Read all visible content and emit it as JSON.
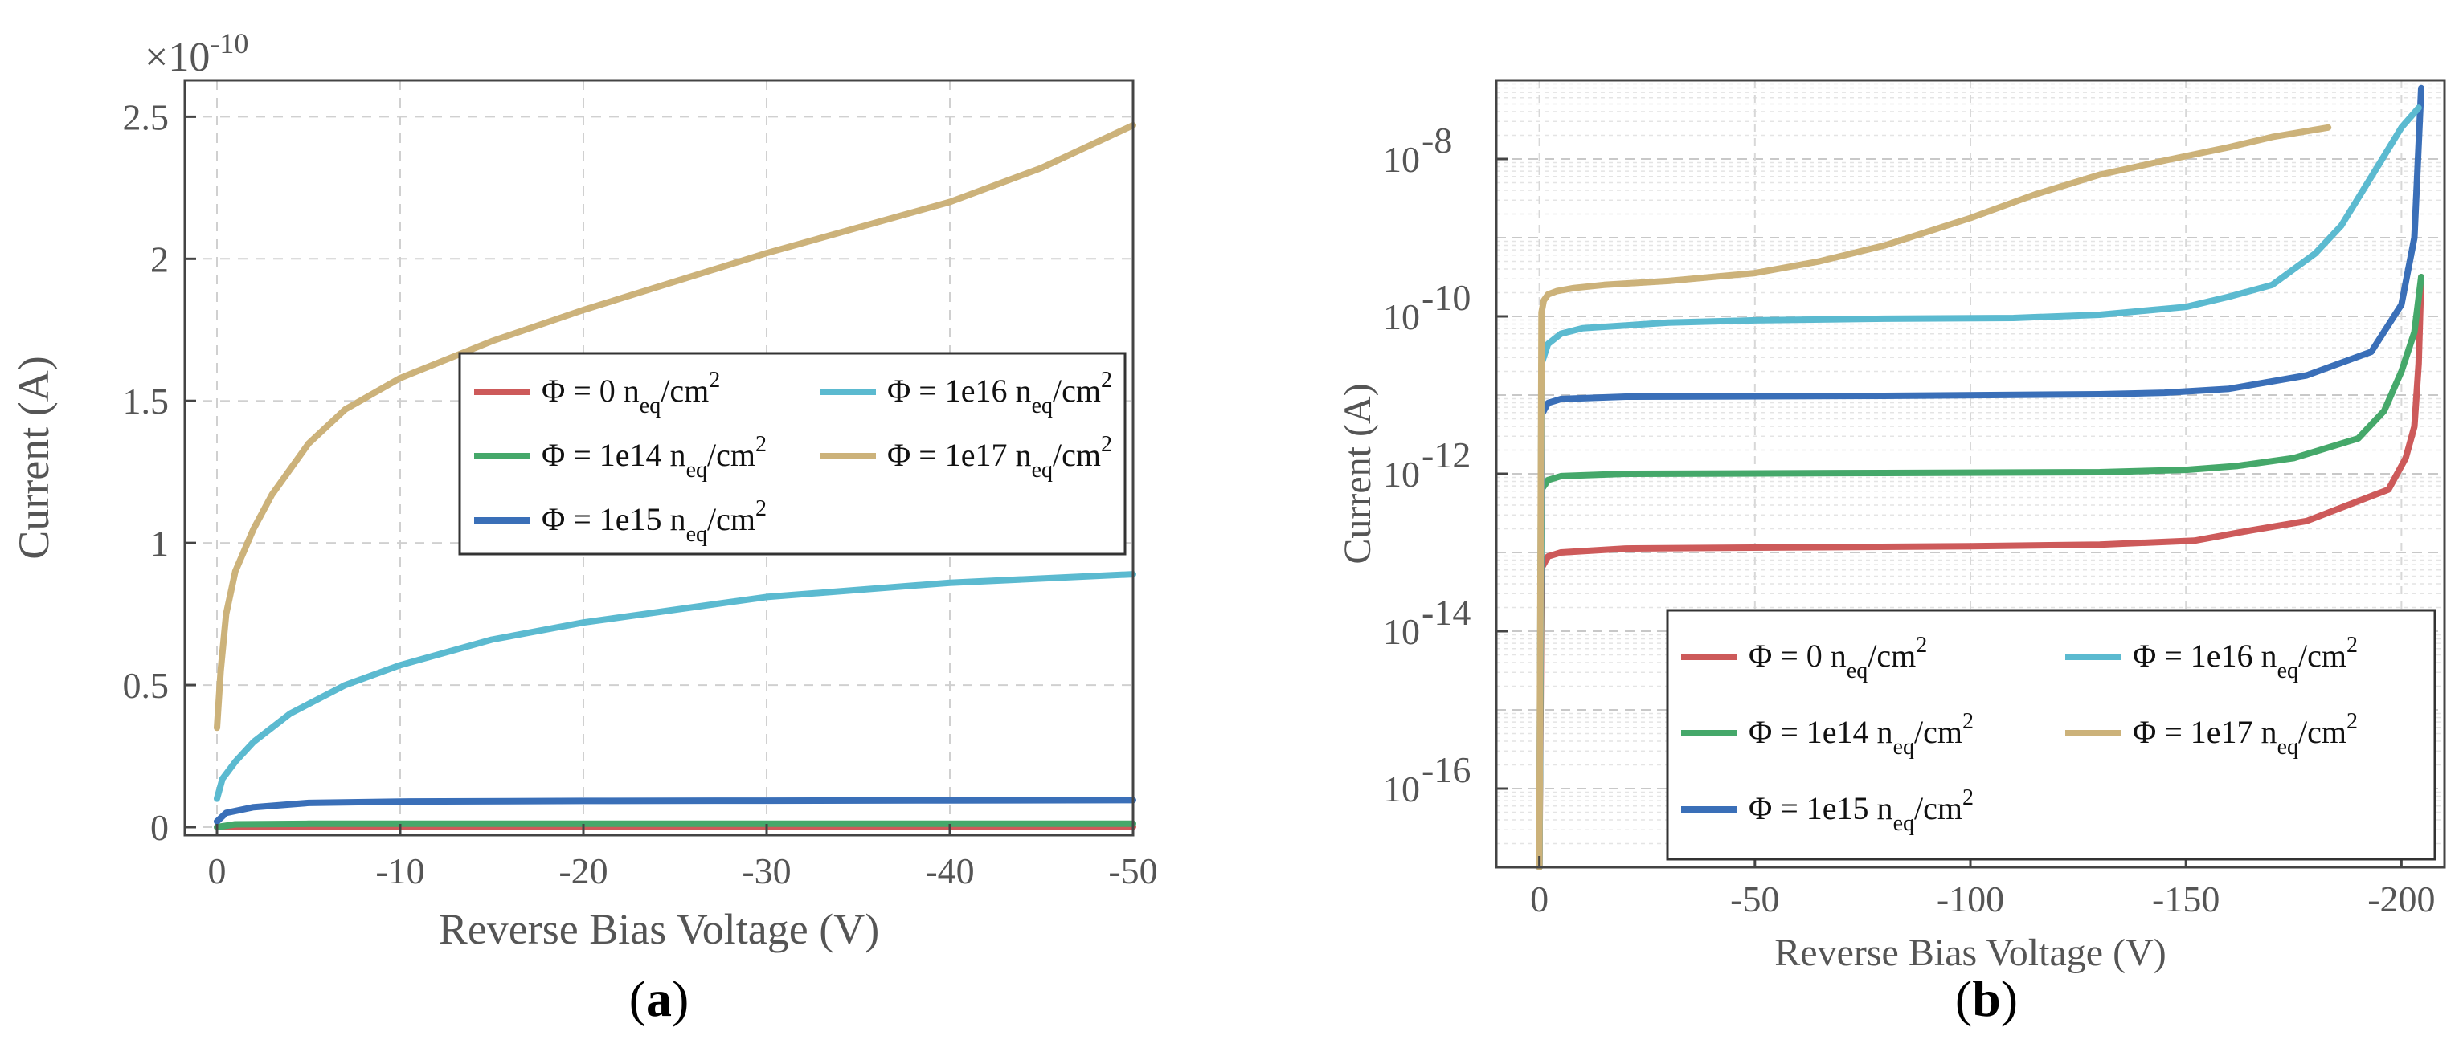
{
  "figure": {
    "colors": {
      "phi0": "#cd5a5a",
      "phi1e14": "#45a86a",
      "phi1e15": "#3a6fb8",
      "phi1e16": "#5bbad0",
      "phi1e17": "#ccb27a",
      "grid": "#d0d0d0",
      "axis": "#444444"
    }
  },
  "chart_data": [
    {
      "panel_label": "(a)",
      "panel_letter": "a",
      "type": "line",
      "xlabel": "Reverse Bias Voltage (V)",
      "ylabel": "Current (A)",
      "exponent_label": "×10",
      "exponent_power": "-10",
      "xlim": [
        0,
        -50
      ],
      "ylim": [
        0,
        2.6
      ],
      "y_scale_factor": 1e-10,
      "xticks": [
        0,
        -10,
        -20,
        -30,
        -40,
        -50
      ],
      "xtick_labels": [
        "0",
        "-10",
        "-20",
        "-30",
        "-40",
        "-50"
      ],
      "yticks": [
        0,
        0.5,
        1,
        1.5,
        2,
        2.5
      ],
      "ytick_labels": [
        "0",
        "0.5",
        "1",
        "1.5",
        "2",
        "2.5"
      ],
      "grid": true,
      "legend_position": "center-right",
      "series": [
        {
          "key": "phi0",
          "label_pre": "Φ = 0 n",
          "label_sub": "eq",
          "label_post": "/cm",
          "label_sup": "2",
          "x": [
            0,
            -1,
            -5,
            -10,
            -20,
            -30,
            -40,
            -50
          ],
          "y": [
            0,
            0.001,
            0.001,
            0.001,
            0.001,
            0.001,
            0.001,
            0.001
          ]
        },
        {
          "key": "phi1e14",
          "label_pre": "Φ = 1e14 n",
          "label_sub": "eq",
          "label_post": "/cm",
          "label_sup": "2",
          "x": [
            0,
            -1,
            -5,
            -10,
            -20,
            -30,
            -40,
            -50
          ],
          "y": [
            0,
            0.01,
            0.012,
            0.012,
            0.012,
            0.012,
            0.012,
            0.012
          ]
        },
        {
          "key": "phi1e15",
          "label_pre": "Φ = 1e15 n",
          "label_sub": "eq",
          "label_post": "/cm",
          "label_sup": "2",
          "x": [
            0,
            -0.5,
            -2,
            -5,
            -10,
            -20,
            -30,
            -40,
            -50
          ],
          "y": [
            0.02,
            0.05,
            0.07,
            0.085,
            0.09,
            0.092,
            0.093,
            0.094,
            0.095
          ]
        },
        {
          "key": "phi1e16",
          "label_pre": "Φ = 1e16 n",
          "label_sub": "eq",
          "label_post": "/cm",
          "label_sup": "2",
          "x": [
            0,
            -0.3,
            -1,
            -2,
            -4,
            -7,
            -10,
            -15,
            -20,
            -30,
            -40,
            -50
          ],
          "y": [
            0.1,
            0.17,
            0.23,
            0.3,
            0.4,
            0.5,
            0.57,
            0.66,
            0.72,
            0.81,
            0.86,
            0.89
          ]
        },
        {
          "key": "phi1e17",
          "label_pre": "Φ = 1e17 n",
          "label_sub": "eq",
          "label_post": "/cm",
          "label_sup": "2",
          "x": [
            0,
            -0.2,
            -0.5,
            -1,
            -2,
            -3,
            -5,
            -7,
            -10,
            -15,
            -20,
            -30,
            -40,
            -45,
            -50
          ],
          "y": [
            0.35,
            0.55,
            0.75,
            0.9,
            1.05,
            1.17,
            1.35,
            1.47,
            1.58,
            1.71,
            1.82,
            2.02,
            2.2,
            2.32,
            2.47
          ]
        }
      ]
    },
    {
      "panel_label": "(b)",
      "panel_letter": "b",
      "type": "line",
      "yscale": "log",
      "xlabel": "Reverse Bias Voltage (V)",
      "ylabel": "Current (A)",
      "xlim": [
        10,
        -210
      ],
      "ylim_exp": [
        -17,
        -7
      ],
      "xticks": [
        0,
        -50,
        -100,
        -150,
        -200
      ],
      "xtick_labels": [
        "0",
        "-50",
        "-100",
        "-150",
        "-200"
      ],
      "yticks_exp": [
        -8,
        -10,
        -12,
        -14,
        -16
      ],
      "ytick_base": "10",
      "ytick_powers": [
        "-8",
        "-10",
        "-12",
        "-14",
        "-16"
      ],
      "grid": true,
      "legend_position": "bottom-right",
      "series": [
        {
          "key": "phi0",
          "label_pre": "Φ = 0 n",
          "label_sub": "eq",
          "label_post": "/cm",
          "label_sup": "2",
          "x": [
            0,
            -0.5,
            -2,
            -5,
            -20,
            -100,
            -130,
            -152,
            -165,
            -178,
            -197,
            -201,
            -203,
            -204,
            -204.6
          ],
          "y_exp": [
            -17,
            -13.2,
            -13.05,
            -13.0,
            -12.95,
            -12.92,
            -12.9,
            -12.85,
            -12.72,
            -12.6,
            -12.2,
            -11.8,
            -11.4,
            -10.6,
            -9.5
          ]
        },
        {
          "key": "phi1e14",
          "label_pre": "Φ = 1e14 n",
          "label_sub": "eq",
          "label_post": "/cm",
          "label_sup": "2",
          "x": [
            0,
            -0.5,
            -2,
            -5,
            -20,
            -80,
            -130,
            -150,
            -162,
            -175,
            -190,
            -196,
            -200,
            -203,
            -204.6
          ],
          "y_exp": [
            -17,
            -12.2,
            -12.08,
            -12.03,
            -12.0,
            -11.99,
            -11.98,
            -11.95,
            -11.9,
            -11.8,
            -11.55,
            -11.2,
            -10.7,
            -10.2,
            -9.5
          ]
        },
        {
          "key": "phi1e15",
          "label_pre": "Φ = 1e15 n",
          "label_sub": "eq",
          "label_post": "/cm",
          "label_sup": "2",
          "x": [
            0,
            -0.5,
            -2,
            -5,
            -20,
            -80,
            -130,
            -145,
            -160,
            -178,
            -193,
            -200,
            -203,
            -204.6
          ],
          "y_exp": [
            -17,
            -11.25,
            -11.1,
            -11.05,
            -11.02,
            -11.01,
            -10.99,
            -10.97,
            -10.92,
            -10.75,
            -10.45,
            -9.85,
            -9.0,
            -7.1
          ]
        },
        {
          "key": "phi1e16",
          "label_pre": "Φ = 1e16 n",
          "label_sub": "eq",
          "label_post": "/cm",
          "label_sup": "2",
          "x": [
            0,
            -0.5,
            -2,
            -5,
            -10,
            -30,
            -50,
            -80,
            -110,
            -130,
            -150,
            -160,
            -170,
            -180,
            -186,
            -195,
            -200,
            -204
          ],
          "y_exp": [
            -17,
            -10.6,
            -10.35,
            -10.22,
            -10.15,
            -10.08,
            -10.05,
            -10.03,
            -10.02,
            -9.98,
            -9.88,
            -9.75,
            -9.6,
            -9.2,
            -8.85,
            -8.05,
            -7.6,
            -7.35
          ]
        },
        {
          "key": "phi1e17",
          "label_pre": "Φ = 1e17 n",
          "label_sub": "eq",
          "label_post": "/cm",
          "label_sup": "2",
          "x": [
            0,
            -0.5,
            -1,
            -2,
            -4,
            -8,
            -15,
            -30,
            -50,
            -65,
            -80,
            -100,
            -115,
            -130,
            -145,
            -160,
            -170,
            -183
          ],
          "y_exp": [
            -17,
            -9.95,
            -9.8,
            -9.72,
            -9.68,
            -9.64,
            -9.6,
            -9.55,
            -9.45,
            -9.3,
            -9.1,
            -8.75,
            -8.45,
            -8.2,
            -8.02,
            -7.85,
            -7.72,
            -7.6
          ]
        }
      ]
    }
  ]
}
